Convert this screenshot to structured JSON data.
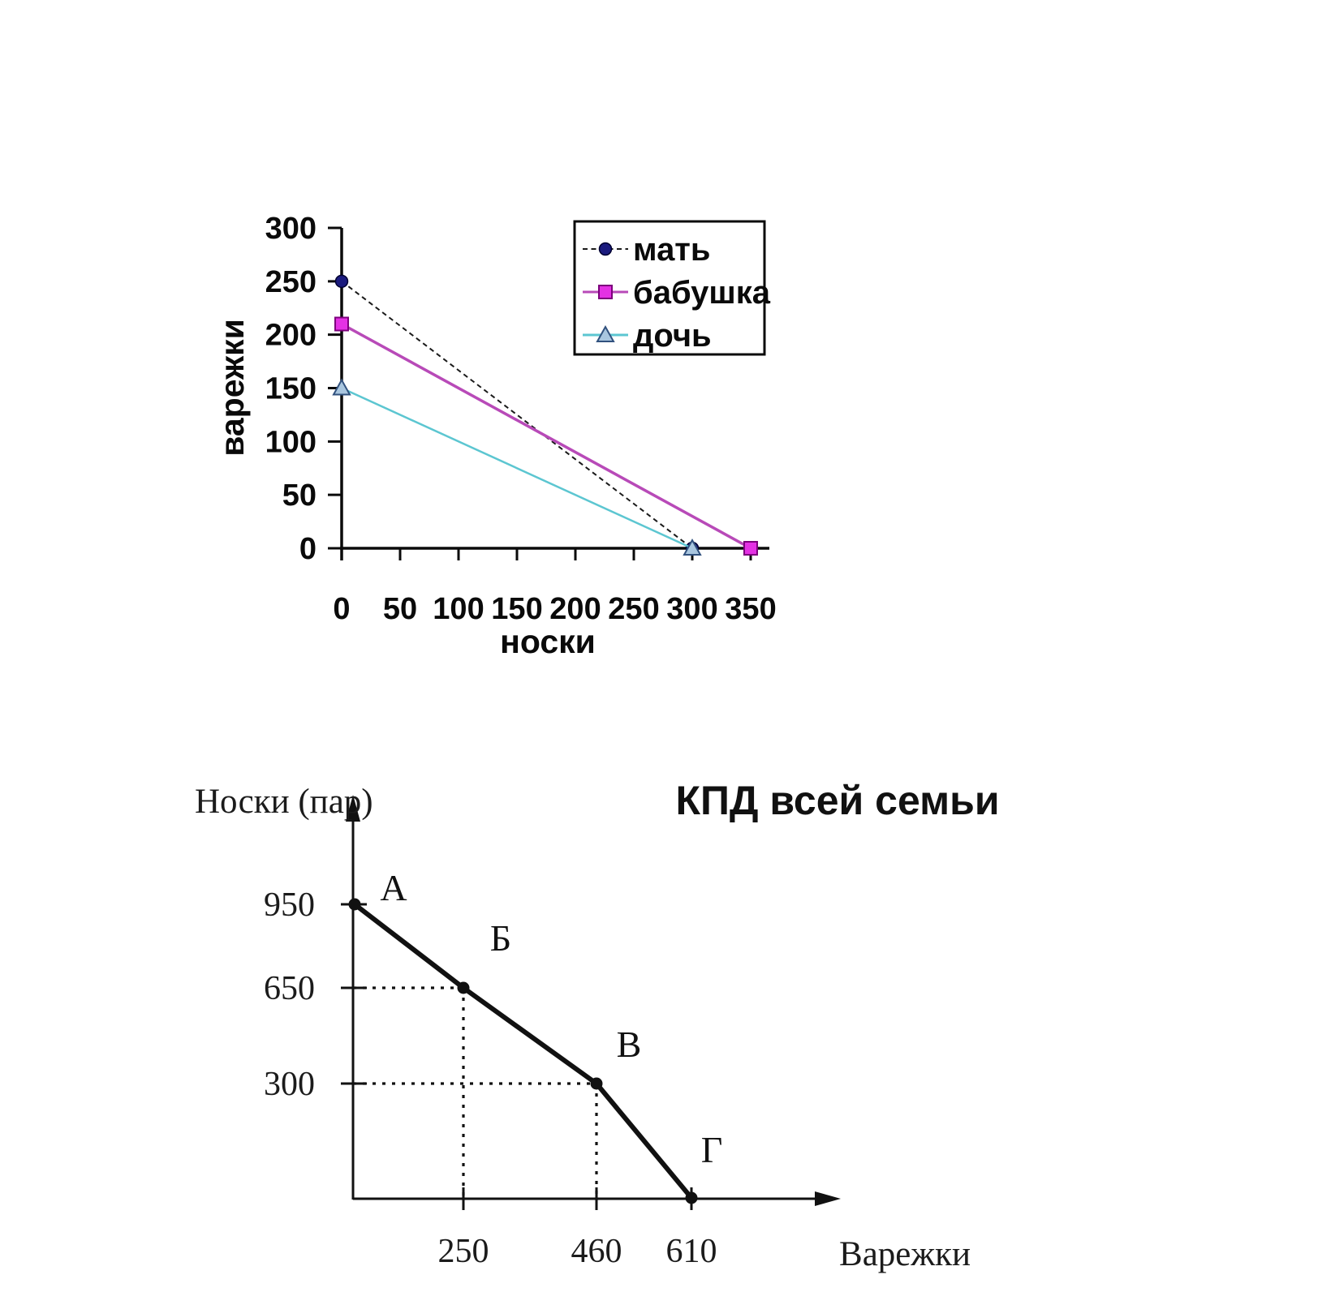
{
  "page": {
    "background": "#ffffff"
  },
  "chart_data": [
    {
      "type": "line",
      "title": "",
      "xlabel": "носки",
      "ylabel": "варежки",
      "xlim": [
        0,
        350
      ],
      "ylim": [
        0,
        300
      ],
      "xticks": [
        0,
        50,
        100,
        150,
        200,
        250,
        300,
        350
      ],
      "yticks": [
        0,
        50,
        100,
        150,
        200,
        250,
        300
      ],
      "grid": false,
      "legend_position": "top-right-inside",
      "series": [
        {
          "name": "мать",
          "line_color": "#1a1a1a",
          "line_style": "dashed",
          "marker": "circle",
          "marker_fill": "#1b1b7e",
          "marker_stroke": "#000030",
          "points": [
            [
              0,
              250
            ],
            [
              300,
              0
            ]
          ]
        },
        {
          "name": "бабушка",
          "line_color": "#b84ab8",
          "line_style": "solid",
          "marker": "square",
          "marker_fill": "#e431e4",
          "marker_stroke": "#7c007c",
          "points": [
            [
              0,
              210
            ],
            [
              350,
              0
            ]
          ]
        },
        {
          "name": "дочь",
          "line_color": "#5cc6d1",
          "line_style": "solid",
          "marker": "triangle",
          "marker_fill": "#a9c6df",
          "marker_stroke": "#31517e",
          "points": [
            [
              0,
              150
            ],
            [
              300,
              0
            ]
          ]
        }
      ]
    },
    {
      "type": "line",
      "title": "КПД всей семьи",
      "xlabel": "Варежки",
      "ylabel": "Носки (пар)",
      "xticks": [
        250,
        460,
        610
      ],
      "yticks": [
        950,
        650,
        300
      ],
      "line_color": "#111111",
      "guide_style": "dotted",
      "guide_point_labels": [
        "Б",
        "В"
      ],
      "points": [
        {
          "label": "А",
          "x": 0,
          "y": 950
        },
        {
          "label": "Б",
          "x": 250,
          "y": 650
        },
        {
          "label": "В",
          "x": 460,
          "y": 300
        },
        {
          "label": "Г",
          "x": 610,
          "y": 0
        }
      ]
    }
  ]
}
